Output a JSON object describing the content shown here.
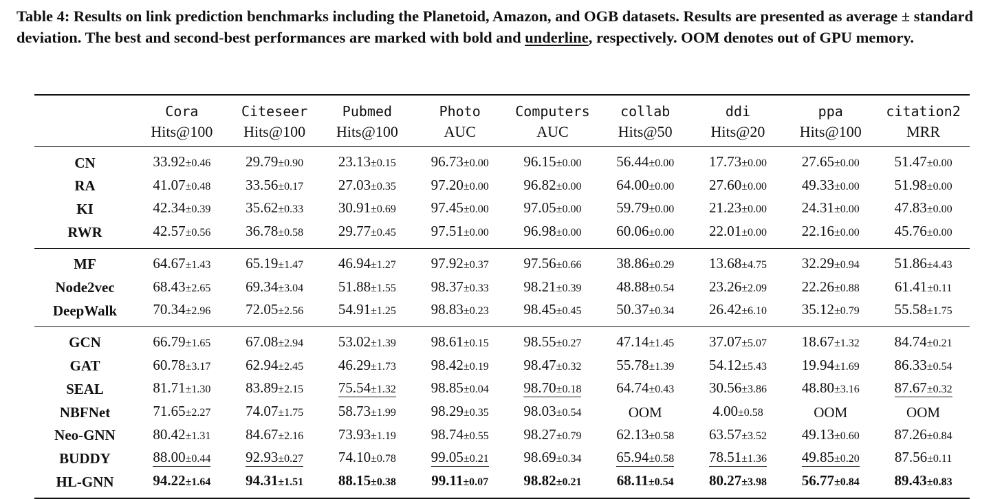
{
  "caption": {
    "part1": "Table 4: Results on link prediction benchmarks including the Planetoid, Amazon, and OGB datasets. Results are presented as average ± standard deviation. The best and second-best performances are marked with bold and ",
    "underline_word": "underline",
    "part2": ", respectively. OOM denotes out of GPU memory."
  },
  "columns": [
    {
      "dataset": "Cora",
      "metric": "Hits@100"
    },
    {
      "dataset": "Citeseer",
      "metric": "Hits@100"
    },
    {
      "dataset": "Pubmed",
      "metric": "Hits@100"
    },
    {
      "dataset": "Photo",
      "metric": "AUC"
    },
    {
      "dataset": "Computers",
      "metric": "AUC"
    },
    {
      "dataset": "collab",
      "metric": "Hits@50"
    },
    {
      "dataset": "ddi",
      "metric": "Hits@20"
    },
    {
      "dataset": "ppa",
      "metric": "Hits@100"
    },
    {
      "dataset": "citation2",
      "metric": "MRR"
    }
  ],
  "groups": [
    [
      {
        "model": "CN",
        "cells": [
          {
            "m": "33.92",
            "s": "±0.46"
          },
          {
            "m": "29.79",
            "s": "±0.90"
          },
          {
            "m": "23.13",
            "s": "±0.15"
          },
          {
            "m": "96.73",
            "s": "±0.00"
          },
          {
            "m": "96.15",
            "s": "±0.00"
          },
          {
            "m": "56.44",
            "s": "±0.00"
          },
          {
            "m": "17.73",
            "s": "±0.00"
          },
          {
            "m": "27.65",
            "s": "±0.00"
          },
          {
            "m": "51.47",
            "s": "±0.00"
          }
        ]
      },
      {
        "model": "RA",
        "cells": [
          {
            "m": "41.07",
            "s": "±0.48"
          },
          {
            "m": "33.56",
            "s": "±0.17"
          },
          {
            "m": "27.03",
            "s": "±0.35"
          },
          {
            "m": "97.20",
            "s": "±0.00"
          },
          {
            "m": "96.82",
            "s": "±0.00"
          },
          {
            "m": "64.00",
            "s": "±0.00"
          },
          {
            "m": "27.60",
            "s": "±0.00"
          },
          {
            "m": "49.33",
            "s": "±0.00"
          },
          {
            "m": "51.98",
            "s": "±0.00"
          }
        ]
      },
      {
        "model": "KI",
        "cells": [
          {
            "m": "42.34",
            "s": "±0.39"
          },
          {
            "m": "35.62",
            "s": "±0.33"
          },
          {
            "m": "30.91",
            "s": "±0.69"
          },
          {
            "m": "97.45",
            "s": "±0.00"
          },
          {
            "m": "97.05",
            "s": "±0.00"
          },
          {
            "m": "59.79",
            "s": "±0.00"
          },
          {
            "m": "21.23",
            "s": "±0.00"
          },
          {
            "m": "24.31",
            "s": "±0.00"
          },
          {
            "m": "47.83",
            "s": "±0.00"
          }
        ]
      },
      {
        "model": "RWR",
        "cells": [
          {
            "m": "42.57",
            "s": "±0.56"
          },
          {
            "m": "36.78",
            "s": "±0.58"
          },
          {
            "m": "29.77",
            "s": "±0.45"
          },
          {
            "m": "97.51",
            "s": "±0.00"
          },
          {
            "m": "96.98",
            "s": "±0.00"
          },
          {
            "m": "60.06",
            "s": "±0.00"
          },
          {
            "m": "22.01",
            "s": "±0.00"
          },
          {
            "m": "22.16",
            "s": "±0.00"
          },
          {
            "m": "45.76",
            "s": "±0.00"
          }
        ]
      }
    ],
    [
      {
        "model": "MF",
        "cells": [
          {
            "m": "64.67",
            "s": "±1.43"
          },
          {
            "m": "65.19",
            "s": "±1.47"
          },
          {
            "m": "46.94",
            "s": "±1.27"
          },
          {
            "m": "97.92",
            "s": "±0.37"
          },
          {
            "m": "97.56",
            "s": "±0.66"
          },
          {
            "m": "38.86",
            "s": "±0.29"
          },
          {
            "m": "13.68",
            "s": "±4.75"
          },
          {
            "m": "32.29",
            "s": "±0.94"
          },
          {
            "m": "51.86",
            "s": "±4.43"
          }
        ]
      },
      {
        "model": "Node2vec",
        "cells": [
          {
            "m": "68.43",
            "s": "±2.65"
          },
          {
            "m": "69.34",
            "s": "±3.04"
          },
          {
            "m": "51.88",
            "s": "±1.55"
          },
          {
            "m": "98.37",
            "s": "±0.33"
          },
          {
            "m": "98.21",
            "s": "±0.39"
          },
          {
            "m": "48.88",
            "s": "±0.54"
          },
          {
            "m": "23.26",
            "s": "±2.09"
          },
          {
            "m": "22.26",
            "s": "±0.88"
          },
          {
            "m": "61.41",
            "s": "±0.11"
          }
        ]
      },
      {
        "model": "DeepWalk",
        "cells": [
          {
            "m": "70.34",
            "s": "±2.96"
          },
          {
            "m": "72.05",
            "s": "±2.56"
          },
          {
            "m": "54.91",
            "s": "±1.25"
          },
          {
            "m": "98.83",
            "s": "±0.23"
          },
          {
            "m": "98.45",
            "s": "±0.45"
          },
          {
            "m": "50.37",
            "s": "±0.34"
          },
          {
            "m": "26.42",
            "s": "±6.10"
          },
          {
            "m": "35.12",
            "s": "±0.79"
          },
          {
            "m": "55.58",
            "s": "±1.75"
          }
        ]
      }
    ],
    [
      {
        "model": "GCN",
        "cells": [
          {
            "m": "66.79",
            "s": "±1.65"
          },
          {
            "m": "67.08",
            "s": "±2.94"
          },
          {
            "m": "53.02",
            "s": "±1.39"
          },
          {
            "m": "98.61",
            "s": "±0.15"
          },
          {
            "m": "98.55",
            "s": "±0.27"
          },
          {
            "m": "47.14",
            "s": "±1.45"
          },
          {
            "m": "37.07",
            "s": "±5.07"
          },
          {
            "m": "18.67",
            "s": "±1.32"
          },
          {
            "m": "84.74",
            "s": "±0.21"
          }
        ]
      },
      {
        "model": "GAT",
        "cells": [
          {
            "m": "60.78",
            "s": "±3.17"
          },
          {
            "m": "62.94",
            "s": "±2.45"
          },
          {
            "m": "46.29",
            "s": "±1.73"
          },
          {
            "m": "98.42",
            "s": "±0.19"
          },
          {
            "m": "98.47",
            "s": "±0.32"
          },
          {
            "m": "55.78",
            "s": "±1.39"
          },
          {
            "m": "54.12",
            "s": "±5.43"
          },
          {
            "m": "19.94",
            "s": "±1.69"
          },
          {
            "m": "86.33",
            "s": "±0.54"
          }
        ]
      },
      {
        "model": "SEAL",
        "cells": [
          {
            "m": "81.71",
            "s": "±1.30"
          },
          {
            "m": "83.89",
            "s": "±2.15"
          },
          {
            "m": "75.54",
            "s": "±1.32",
            "u": true
          },
          {
            "m": "98.85",
            "s": "±0.04"
          },
          {
            "m": "98.70",
            "s": "±0.18",
            "u": true
          },
          {
            "m": "64.74",
            "s": "±0.43"
          },
          {
            "m": "30.56",
            "s": "±3.86"
          },
          {
            "m": "48.80",
            "s": "±3.16"
          },
          {
            "m": "87.67",
            "s": "±0.32",
            "u": true
          }
        ]
      },
      {
        "model": "NBFNet",
        "cells": [
          {
            "m": "71.65",
            "s": "±2.27"
          },
          {
            "m": "74.07",
            "s": "±1.75"
          },
          {
            "m": "58.73",
            "s": "±1.99"
          },
          {
            "m": "98.29",
            "s": "±0.35"
          },
          {
            "m": "98.03",
            "s": "±0.54"
          },
          {
            "m": "OOM",
            "s": ""
          },
          {
            "m": "4.00",
            "s": "±0.58"
          },
          {
            "m": "OOM",
            "s": ""
          },
          {
            "m": "OOM",
            "s": ""
          }
        ]
      },
      {
        "model": "Neo-GNN",
        "cells": [
          {
            "m": "80.42",
            "s": "±1.31"
          },
          {
            "m": "84.67",
            "s": "±2.16"
          },
          {
            "m": "73.93",
            "s": "±1.19"
          },
          {
            "m": "98.74",
            "s": "±0.55"
          },
          {
            "m": "98.27",
            "s": "±0.79"
          },
          {
            "m": "62.13",
            "s": "±0.58"
          },
          {
            "m": "63.57",
            "s": "±3.52"
          },
          {
            "m": "49.13",
            "s": "±0.60"
          },
          {
            "m": "87.26",
            "s": "±0.84"
          }
        ]
      },
      {
        "model": "BUDDY",
        "cells": [
          {
            "m": "88.00",
            "s": "±0.44",
            "u": true
          },
          {
            "m": "92.93",
            "s": "±0.27",
            "u": true
          },
          {
            "m": "74.10",
            "s": "±0.78"
          },
          {
            "m": "99.05",
            "s": "±0.21",
            "u": true
          },
          {
            "m": "98.69",
            "s": "±0.34"
          },
          {
            "m": "65.94",
            "s": "±0.58",
            "u": true
          },
          {
            "m": "78.51",
            "s": "±1.36",
            "u": true
          },
          {
            "m": "49.85",
            "s": "±0.20",
            "u": true
          },
          {
            "m": "87.56",
            "s": "±0.11"
          }
        ]
      },
      {
        "model": "HL-GNN",
        "cells": [
          {
            "m": "94.22",
            "s": "±1.64",
            "b": true
          },
          {
            "m": "94.31",
            "s": "±1.51",
            "b": true
          },
          {
            "m": "88.15",
            "s": "±0.38",
            "b": true
          },
          {
            "m": "99.11",
            "s": "±0.07",
            "b": true
          },
          {
            "m": "98.82",
            "s": "±0.21",
            "b": true
          },
          {
            "m": "68.11",
            "s": "±0.54",
            "b": true
          },
          {
            "m": "80.27",
            "s": "±3.98",
            "b": true
          },
          {
            "m": "56.77",
            "s": "±0.84",
            "b": true
          },
          {
            "m": "89.43",
            "s": "±0.83",
            "b": true
          }
        ]
      }
    ]
  ]
}
